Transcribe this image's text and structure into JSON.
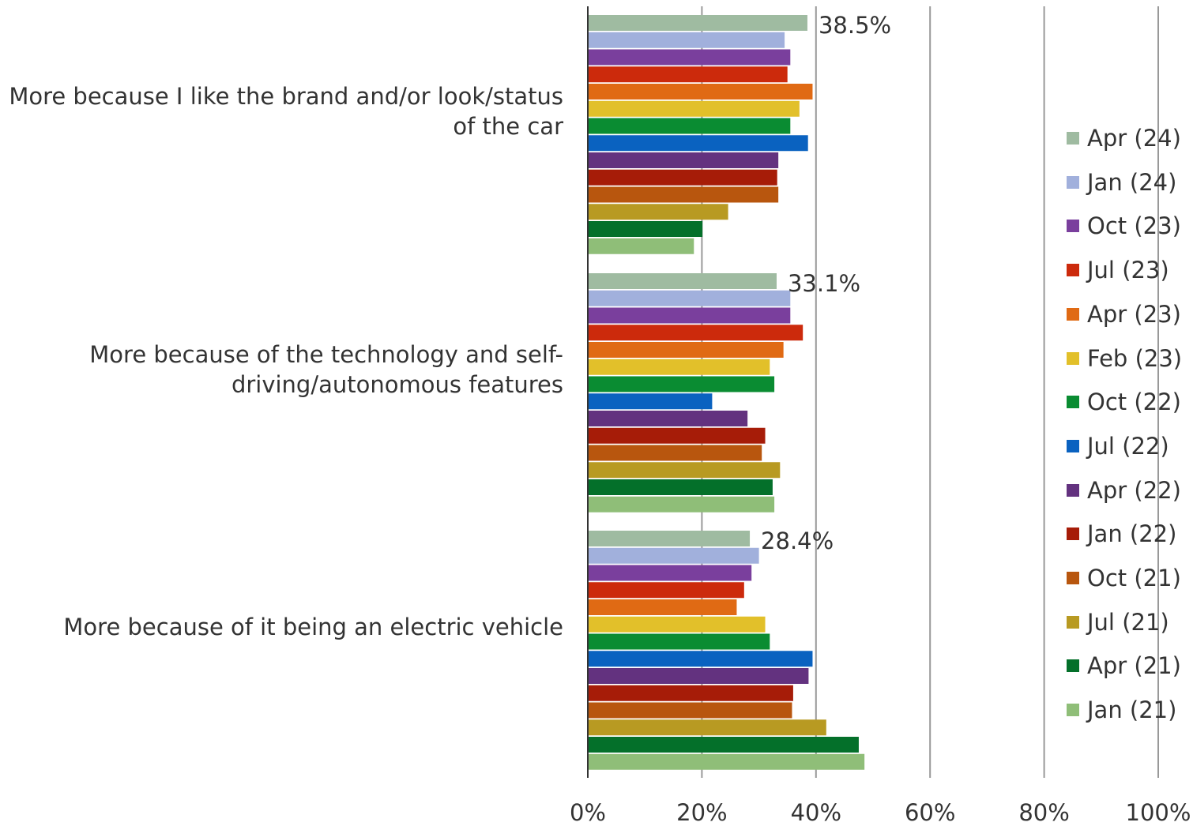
{
  "chart_data": {
    "type": "bar",
    "orientation": "horizontal",
    "categories": [
      [
        "More because I like the brand and/or look/status",
        "of the car"
      ],
      [
        "More because of the technology and self-",
        "driving/autonomous features"
      ],
      [
        "More because of it being an electric vehicle"
      ]
    ],
    "xlim": [
      0,
      100
    ],
    "x_ticks": [
      "0%",
      "20%",
      "40%",
      "60%",
      "80%",
      "100%"
    ],
    "grid": true,
    "legend_position": "right",
    "series": [
      {
        "name": "Apr (24)",
        "color": "#9fbba1",
        "values": [
          38.5,
          33.1,
          28.4
        ]
      },
      {
        "name": "Jan (24)",
        "color": "#a1b0dc",
        "values": [
          34.5,
          35.5,
          30.0
        ]
      },
      {
        "name": "Oct (23)",
        "color": "#7a3f9d",
        "values": [
          35.5,
          35.5,
          28.7
        ]
      },
      {
        "name": "Jul (23)",
        "color": "#cc2a0c",
        "values": [
          35.0,
          37.7,
          27.4
        ]
      },
      {
        "name": "Apr (23)",
        "color": "#e06a14",
        "values": [
          39.4,
          34.3,
          26.1
        ]
      },
      {
        "name": "Feb (23)",
        "color": "#e2c02a",
        "values": [
          37.1,
          31.9,
          31.1
        ]
      },
      {
        "name": "Oct (22)",
        "color": "#0a8c32",
        "values": [
          35.5,
          32.7,
          31.9
        ]
      },
      {
        "name": "Jul (22)",
        "color": "#0a62c0",
        "values": [
          38.6,
          21.8,
          39.4
        ]
      },
      {
        "name": "Apr (22)",
        "color": "#63327f",
        "values": [
          33.4,
          28.0,
          38.7
        ]
      },
      {
        "name": "Jan (22)",
        "color": "#a61c08",
        "values": [
          33.2,
          31.1,
          36.0
        ]
      },
      {
        "name": "Oct (21)",
        "color": "#b8560e",
        "values": [
          33.4,
          30.5,
          35.8
        ]
      },
      {
        "name": "Jul (21)",
        "color": "#b89a22",
        "values": [
          24.6,
          33.7,
          41.8
        ]
      },
      {
        "name": "Apr (21)",
        "color": "#04702a",
        "values": [
          20.1,
          32.4,
          47.5
        ]
      },
      {
        "name": "Jan (21)",
        "color": "#8fbe78",
        "values": [
          18.6,
          32.7,
          48.5
        ]
      }
    ],
    "data_labels": [
      "38.5%",
      "33.1%",
      "28.4%"
    ],
    "axis_color": "#333333",
    "grid_color": "#999999"
  }
}
